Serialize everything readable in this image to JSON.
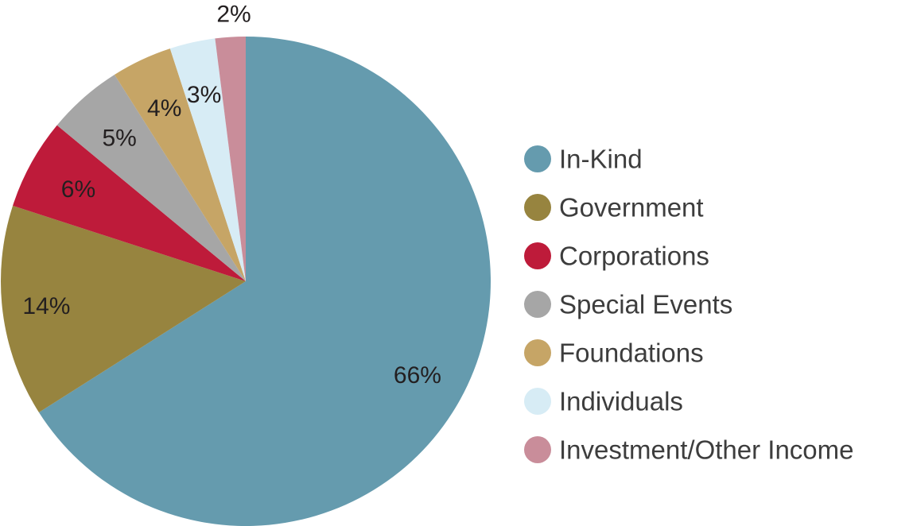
{
  "chart_data": {
    "type": "pie",
    "title": "",
    "start": "top",
    "direction": "clockwise",
    "legend_position": "right",
    "slices": [
      {
        "name": "In-Kind",
        "value": 66,
        "label": "66%",
        "color": "#659bae"
      },
      {
        "name": "Government",
        "value": 14,
        "label": "14%",
        "color": "#97843f"
      },
      {
        "name": "Corporations",
        "value": 6,
        "label": "6%",
        "color": "#be1b3a"
      },
      {
        "name": "Special Events",
        "value": 5,
        "label": "5%",
        "color": "#a6a6a6"
      },
      {
        "name": "Foundations",
        "value": 4,
        "label": "4%",
        "color": "#c6a566"
      },
      {
        "name": "Individuals",
        "value": 3,
        "label": "3%",
        "color": "#d7ecf5"
      },
      {
        "name": "Investment/Other Income",
        "value": 2,
        "label": "2%",
        "color": "#c98d9a"
      }
    ]
  }
}
